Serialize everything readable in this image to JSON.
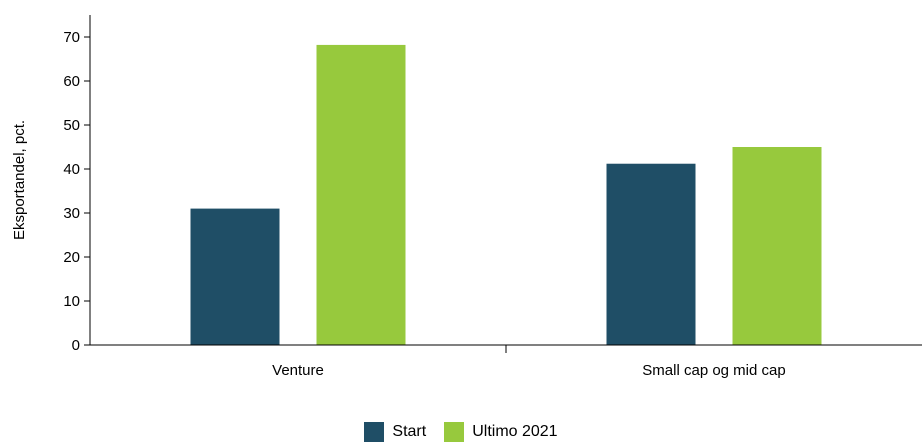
{
  "chart_data": {
    "type": "bar",
    "categories": [
      "Venture",
      "Small cap og mid cap"
    ],
    "series": [
      {
        "name": "Start",
        "values": [
          31,
          41.2
        ],
        "color": "#1f4e66"
      },
      {
        "name": "Ultimo 2021",
        "values": [
          68.2,
          45
        ],
        "color": "#97c93d"
      }
    ],
    "title": "",
    "xlabel": "",
    "ylabel": "Eksportandel, pct.",
    "ylim": [
      0,
      75
    ],
    "yticks": [
      0,
      10,
      20,
      30,
      40,
      50,
      60,
      70
    ],
    "grid": false,
    "legend_position": "bottom-center"
  }
}
